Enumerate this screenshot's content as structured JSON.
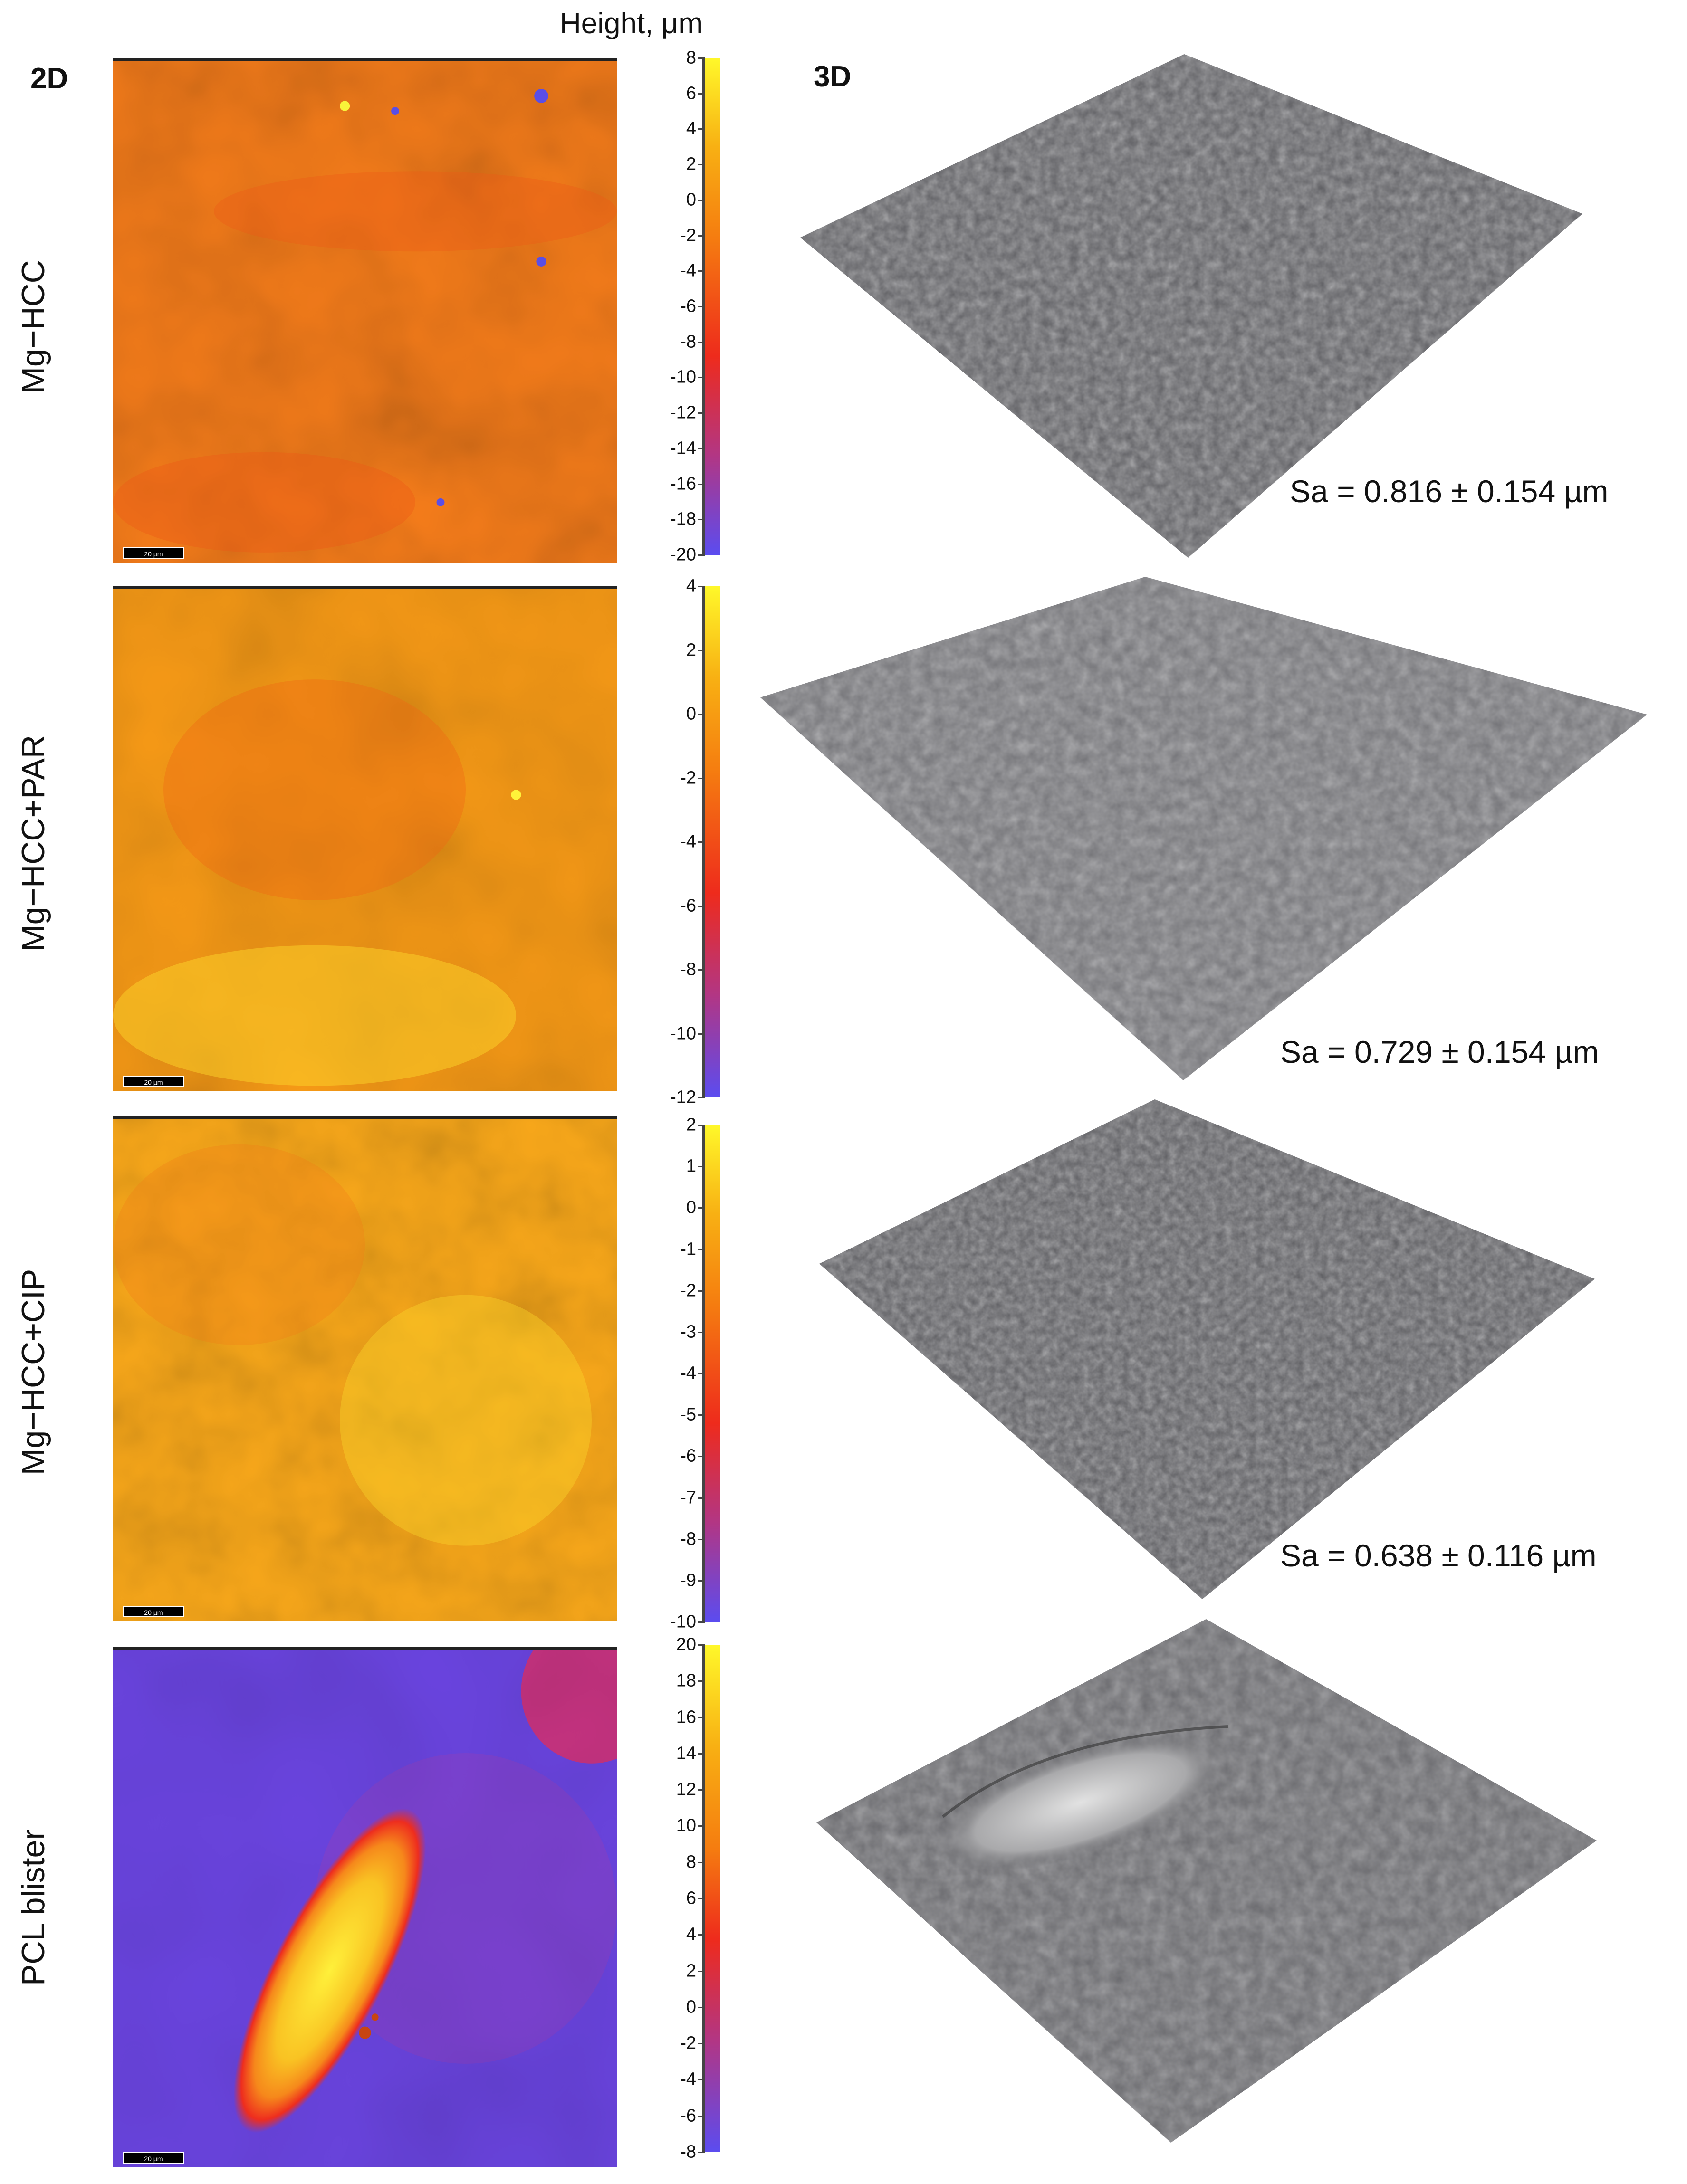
{
  "headers": {
    "left": "2D",
    "colorbar": "Height, μm",
    "right": "3D"
  },
  "panels": [
    {
      "label": "Mg−HCC",
      "scale_bar": "20 µm",
      "sa": "Sa = 0.816 ± 0.154 µm",
      "ticks": [
        "8",
        "6",
        "4",
        "2",
        "0",
        "-2",
        "-4",
        "-6",
        "-8",
        "-10",
        "-12",
        "-14",
        "-16",
        "-18",
        "-20"
      ]
    },
    {
      "label": "Mg−HCC+PAR",
      "scale_bar": "20 µm",
      "sa": "Sa = 0.729 ± 0.154 µm",
      "ticks": [
        "4",
        "2",
        "0",
        "-2",
        "-4",
        "-6",
        "-8",
        "-10",
        "-12"
      ]
    },
    {
      "label": "Mg−HCC+CIP",
      "scale_bar": "20 µm",
      "sa": "Sa = 0.638 ± 0.116 µm",
      "ticks": [
        "2",
        "1",
        "0",
        "-1",
        "-2",
        "-3",
        "-4",
        "-5",
        "-6",
        "-7",
        "-8",
        "-9",
        "-10"
      ]
    },
    {
      "label": "PCL blister",
      "scale_bar": "20 µm",
      "sa": "",
      "ticks": [
        "20",
        "18",
        "16",
        "14",
        "12",
        "10",
        "8",
        "6",
        "4",
        "2",
        "0",
        "-2",
        "-4",
        "-6",
        "-8"
      ]
    }
  ],
  "colors": {
    "orange": "#f57f17",
    "yellow": "#fff200",
    "red": "#ee2b1c",
    "purple": "#7a3be0",
    "blue": "#5b4cf0",
    "surface_gray": "#6a6a6e"
  }
}
